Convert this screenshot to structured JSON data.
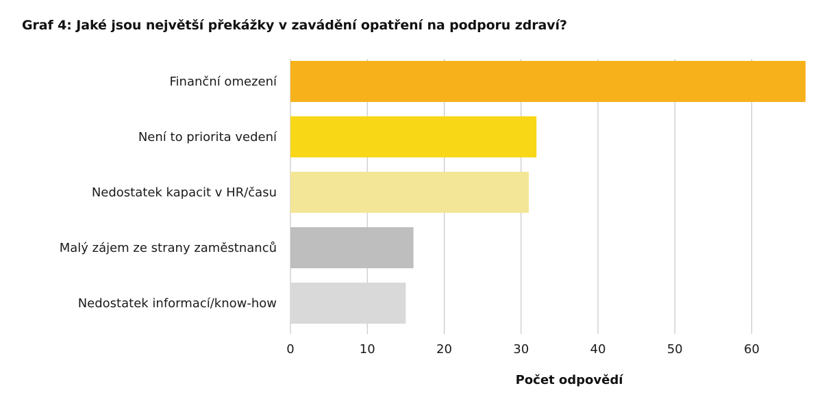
{
  "chart_data": {
    "type": "bar",
    "orientation": "horizontal",
    "title": "Graf 4: Jaké jsou největší překážky v zavádění opatření na podporu zdraví?",
    "xlabel": "Počet odpovědí",
    "ylabel": "",
    "categories": [
      "Finanční omezení",
      "Není to priorita vedení",
      "Nedostatek kapacit v HR/času",
      "Malý zájem ze strany zaměstnanců",
      "Nedostatek informací/know-how"
    ],
    "values": [
      67,
      32,
      31,
      16,
      15
    ],
    "colors": [
      "#F7B21B",
      "#F7D716",
      "#F4E697",
      "#BEBEBE",
      "#D9D9D9"
    ],
    "xlim": [
      0,
      67
    ],
    "xticks": [
      0,
      10,
      20,
      30,
      40,
      50,
      60
    ],
    "grid": "vertical",
    "legend": "none"
  }
}
